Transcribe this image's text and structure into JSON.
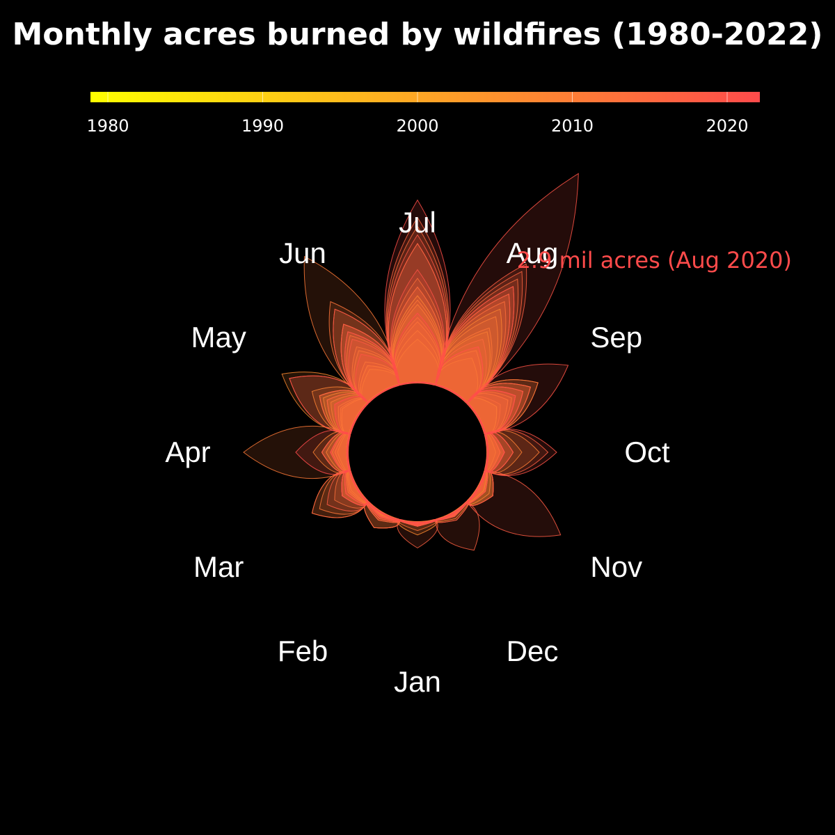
{
  "chart_data": {
    "type": "polar-petal",
    "title": "Monthly acres burned by wildfires (1980-2022)",
    "colorbar": {
      "label": "",
      "ticks": [
        "1980",
        "1990",
        "2000",
        "2010",
        "2020"
      ],
      "range": [
        1980,
        2022
      ],
      "colors": [
        "#ffff00",
        "#ff4b4b"
      ]
    },
    "months": [
      "Jan",
      "Feb",
      "Mar",
      "Apr",
      "May",
      "Jun",
      "Jul",
      "Aug",
      "Sep",
      "Oct",
      "Nov",
      "Dec"
    ],
    "r_unit": "million acres",
    "r_max": 2.9,
    "series": [
      {
        "year": 1980,
        "values": [
          0.02,
          0.03,
          0.08,
          0.12,
          0.25,
          0.3,
          0.5,
          0.45,
          0.25,
          0.15,
          0.2,
          0.05
        ]
      },
      {
        "year": 1984,
        "values": [
          0.02,
          0.03,
          0.1,
          0.15,
          0.2,
          0.35,
          0.6,
          0.55,
          0.25,
          0.1,
          0.08,
          0.03
        ]
      },
      {
        "year": 1988,
        "values": [
          0.02,
          0.04,
          0.12,
          0.18,
          0.22,
          0.4,
          1.0,
          1.1,
          0.5,
          0.2,
          0.1,
          0.03
        ]
      },
      {
        "year": 1992,
        "values": [
          0.03,
          0.05,
          0.1,
          0.15,
          0.2,
          0.35,
          0.7,
          0.8,
          0.4,
          0.15,
          0.1,
          0.04
        ]
      },
      {
        "year": 1996,
        "values": [
          0.04,
          0.1,
          0.2,
          0.3,
          0.4,
          0.55,
          0.9,
          1.0,
          0.45,
          0.2,
          0.1,
          0.05
        ]
      },
      {
        "year": 2000,
        "values": [
          0.05,
          0.08,
          0.2,
          0.25,
          0.45,
          0.6,
          0.95,
          1.3,
          0.6,
          0.3,
          0.15,
          0.05
        ]
      },
      {
        "year": 2002,
        "values": [
          0.05,
          0.06,
          0.15,
          0.2,
          0.5,
          1.1,
          1.1,
          0.85,
          0.4,
          0.2,
          0.1,
          0.05
        ]
      },
      {
        "year": 2004,
        "values": [
          0.03,
          0.05,
          0.12,
          0.15,
          0.35,
          0.9,
          0.75,
          0.6,
          0.3,
          0.15,
          0.08,
          0.03
        ]
      },
      {
        "year": 2006,
        "values": [
          0.15,
          0.2,
          0.6,
          0.4,
          0.6,
          0.75,
          1.2,
          1.4,
          0.7,
          0.4,
          0.2,
          0.1
        ]
      },
      {
        "year": 2007,
        "values": [
          0.05,
          0.08,
          0.2,
          0.3,
          1.0,
          0.8,
          1.6,
          1.2,
          0.8,
          0.6,
          0.2,
          0.08
        ]
      },
      {
        "year": 2011,
        "values": [
          0.1,
          0.2,
          0.5,
          1.2,
          0.9,
          1.8,
          1.1,
          0.7,
          0.8,
          0.15,
          0.1,
          0.05
        ]
      },
      {
        "year": 2012,
        "values": [
          0.05,
          0.1,
          0.3,
          0.2,
          0.5,
          1.2,
          1.8,
          1.5,
          0.6,
          0.2,
          0.1,
          0.05
        ]
      },
      {
        "year": 2015,
        "values": [
          0.05,
          0.08,
          0.15,
          0.2,
          0.5,
          0.9,
          1.9,
          1.6,
          0.7,
          0.3,
          0.1,
          0.04
        ]
      },
      {
        "year": 2017,
        "values": [
          0.3,
          0.2,
          0.6,
          0.3,
          0.4,
          0.7,
          1.6,
          1.7,
          0.7,
          0.7,
          0.2,
          0.5
        ]
      },
      {
        "year": 2018,
        "values": [
          0.05,
          0.1,
          0.4,
          0.3,
          0.3,
          0.9,
          1.7,
          1.3,
          0.5,
          0.2,
          1.1,
          0.05
        ]
      },
      {
        "year": 2020,
        "values": [
          0.05,
          0.08,
          0.2,
          0.2,
          0.3,
          0.5,
          1.3,
          2.9,
          1.2,
          0.8,
          0.2,
          0.1
        ]
      },
      {
        "year": 2021,
        "values": [
          0.04,
          0.06,
          0.15,
          0.2,
          0.3,
          0.8,
          2.1,
          1.4,
          0.6,
          0.3,
          0.1,
          0.05
        ]
      },
      {
        "year": 2022,
        "values": [
          0.03,
          0.05,
          0.2,
          0.6,
          0.9,
          1.1,
          0.8,
          0.6,
          0.5,
          0.2,
          0.05,
          0.03
        ]
      }
    ],
    "annotation": {
      "text": "2.9 mil acres (Aug 2020)",
      "color": "#ff4b4b"
    }
  }
}
